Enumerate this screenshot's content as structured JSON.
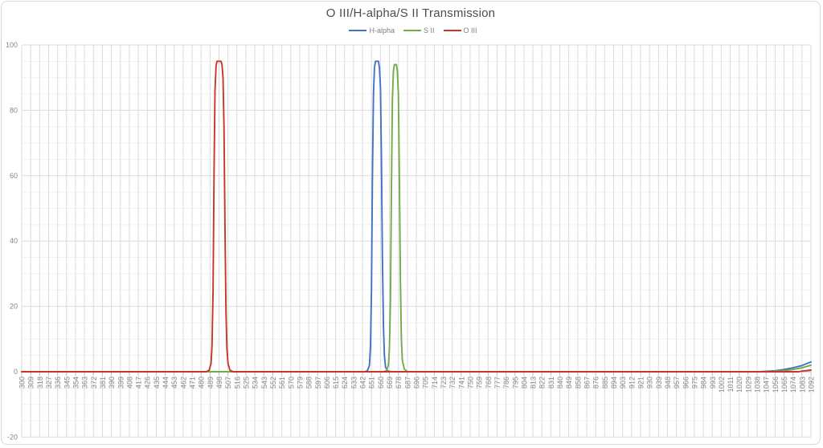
{
  "chart_data": {
    "type": "line",
    "title": "O III/H-alpha/S II Transmission",
    "xlabel": "",
    "ylabel": "",
    "legend_position": "top-center",
    "grid": "major-and-minor",
    "xlim": [
      300,
      1092
    ],
    "ylim": [
      -20,
      100
    ],
    "x_tick_step": 9,
    "y_major_step": 20,
    "y_minor_step": 5,
    "x_tick_labels": [
      300,
      309,
      318,
      327,
      336,
      345,
      354,
      363,
      372,
      381,
      390,
      399,
      408,
      417,
      426,
      435,
      444,
      453,
      462,
      471,
      480,
      489,
      498,
      507,
      516,
      525,
      534,
      543,
      552,
      561,
      570,
      579,
      588,
      597,
      606,
      615,
      624,
      633,
      642,
      651,
      660,
      669,
      678,
      687,
      696,
      705,
      714,
      723,
      732,
      741,
      750,
      759,
      768,
      777,
      786,
      795,
      804,
      813,
      822,
      831,
      840,
      849,
      858,
      867,
      876,
      885,
      894,
      903,
      912,
      921,
      930,
      939,
      948,
      957,
      966,
      975,
      984,
      993,
      1002,
      1011,
      1020,
      1029,
      1038,
      1047,
      1056,
      1065,
      1074,
      1083,
      1092
    ],
    "y_tick_labels": [
      100,
      80,
      60,
      40,
      20,
      0,
      -20
    ],
    "series": [
      {
        "name": "H-alpha",
        "color": "#4472C4",
        "peak_center_nm": 656,
        "peak_transmission_pct": 95,
        "points": [
          [
            300,
            0
          ],
          [
            644,
            0
          ],
          [
            647,
            0.3
          ],
          [
            649,
            2
          ],
          [
            650,
            8
          ],
          [
            651,
            25
          ],
          [
            652,
            60
          ],
          [
            653,
            85
          ],
          [
            654,
            93
          ],
          [
            655,
            95
          ],
          [
            656,
            95
          ],
          [
            658,
            95
          ],
          [
            659,
            93
          ],
          [
            660,
            87
          ],
          [
            661,
            65
          ],
          [
            662,
            35
          ],
          [
            663,
            14
          ],
          [
            664,
            5
          ],
          [
            665,
            1.5
          ],
          [
            667,
            0.3
          ],
          [
            670,
            0
          ],
          [
            1040,
            0
          ],
          [
            1056,
            0.3
          ],
          [
            1065,
            0.7
          ],
          [
            1074,
            1.2
          ],
          [
            1083,
            1.9
          ],
          [
            1092,
            3
          ]
        ]
      },
      {
        "name": "S II",
        "color": "#70AD47",
        "peak_center_nm": 674,
        "peak_transmission_pct": 94,
        "points": [
          [
            300,
            0
          ],
          [
            663,
            0
          ],
          [
            666,
            0.3
          ],
          [
            668,
            2
          ],
          [
            669,
            7
          ],
          [
            670,
            22
          ],
          [
            671,
            55
          ],
          [
            672,
            83
          ],
          [
            673,
            92
          ],
          [
            674,
            94
          ],
          [
            676,
            94
          ],
          [
            677,
            92
          ],
          [
            678,
            85
          ],
          [
            679,
            60
          ],
          [
            680,
            28
          ],
          [
            681,
            10
          ],
          [
            682,
            3.5
          ],
          [
            684,
            0.8
          ],
          [
            687,
            0
          ],
          [
            1050,
            0
          ],
          [
            1065,
            0.3
          ],
          [
            1074,
            0.7
          ],
          [
            1083,
            1.2
          ],
          [
            1092,
            2
          ]
        ]
      },
      {
        "name": "O III",
        "color": "#C9342C",
        "peak_center_nm": 498,
        "peak_transmission_pct": 95,
        "points": [
          [
            300,
            0
          ],
          [
            485,
            0
          ],
          [
            488,
            0.4
          ],
          [
            490,
            2.5
          ],
          [
            491,
            8
          ],
          [
            492,
            25
          ],
          [
            493,
            60
          ],
          [
            494,
            86
          ],
          [
            495,
            93.5
          ],
          [
            496,
            95
          ],
          [
            500,
            95
          ],
          [
            501,
            94
          ],
          [
            502,
            90
          ],
          [
            503,
            75
          ],
          [
            504,
            45
          ],
          [
            505,
            18
          ],
          [
            506,
            7
          ],
          [
            507,
            2.5
          ],
          [
            509,
            0.5
          ],
          [
            512,
            0
          ],
          [
            1080,
            0
          ],
          [
            1083,
            0.2
          ],
          [
            1092,
            0.5
          ]
        ]
      }
    ],
    "style_colors": {
      "title_text": "#4d4d4d",
      "tick_label_text": "#858585",
      "legend_text": "#7f7f7f",
      "major_gridline": "#dbdbdb",
      "minor_gridline": "#f1f1f1",
      "axis_line": "#bfbfbf"
    }
  }
}
